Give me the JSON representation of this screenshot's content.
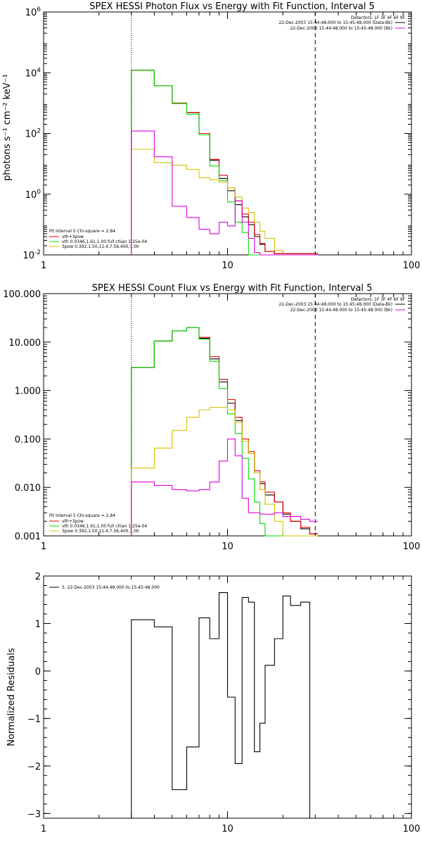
{
  "chart_data": [
    {
      "id": "photon",
      "type": "line",
      "title": "SPEX HESSI Photon Flux vs Energy with Fit Function, Interval 5",
      "xlabel": "",
      "ylabel": "photons s⁻¹ cm⁻² keV⁻¹",
      "xscale": "log",
      "yscale": "log",
      "xlim": [
        1,
        100
      ],
      "ylim": [
        0.01,
        1000000
      ],
      "xticks": [
        {
          "v": 1,
          "label": "1"
        },
        {
          "v": 10,
          "label": "10"
        },
        {
          "v": 100,
          "label": "100"
        }
      ],
      "yticks": [
        {
          "v": 0.01,
          "base": "10",
          "exp": "-2"
        },
        {
          "v": 1,
          "base": "10",
          "exp": "0"
        },
        {
          "v": 100,
          "base": "10",
          "exp": "2"
        },
        {
          "v": 10000,
          "base": "10",
          "exp": "4"
        },
        {
          "v": 1000000,
          "base": "10",
          "exp": "6"
        }
      ],
      "vlines": [
        {
          "x": 3,
          "style": "dotted"
        },
        {
          "x": 30,
          "style": "dashed"
        }
      ],
      "info_lines": [
        "Detectors: 1F 3F 4F 6F 9F",
        "22-Dec-2003 15:44:48.000 to 15:45:48.000 (Data-Bk)",
        "22-Dec-2003 15:44:48.000 to 15:45:48.000 (Bk)"
      ],
      "fit_legend": {
        "header": "Fit Interval 5   Chi-square = 2.84",
        "entries": [
          {
            "label": "vth+3pow",
            "color": "#e00000"
          },
          {
            "label": "vth 0.0346,1.61,1.00  full chian 1.25e-04",
            "color": "#00dd00"
          },
          {
            "label": "3pow 0.392,1.50,11.4,7.56,400,1.00",
            "color": "#d8c000"
          }
        ]
      },
      "edges": [
        3,
        4,
        5,
        6,
        7,
        8,
        9,
        10,
        11,
        12,
        13,
        14,
        15,
        16,
        18,
        20,
        22,
        25,
        28,
        31
      ],
      "series": [
        {
          "color": "#000000",
          "values": [
            12000,
            3700,
            1000,
            490,
            100,
            13,
            3.3,
            1.3,
            0.45,
            0.18,
            0.1,
            0.04,
            0.022,
            0.013,
            0.011,
            0.011,
            0.011,
            0.011,
            0.011
          ]
        },
        {
          "color": "#e00000",
          "values": [
            12000,
            3700,
            1000,
            490,
            100,
            14,
            4.2,
            1.6,
            0.6,
            0.22,
            0.12,
            0.047,
            0.024,
            0.013,
            0.011,
            0.011,
            0.011,
            0.011,
            0.011
          ]
        },
        {
          "color": "#00dd00",
          "values": [
            12000,
            3700,
            960,
            430,
            90,
            8.5,
            2.8,
            0.55,
            0.12,
            0.055,
            0.01,
            0.01,
            0.01,
            0.01,
            0.01,
            0.01,
            0.01,
            0.01,
            0.01
          ]
        },
        {
          "color": "#d8c000",
          "values": [
            30,
            11,
            9,
            6.5,
            3.5,
            3,
            2.5,
            1.6,
            0.8,
            0.35,
            0.25,
            0.12,
            0.06,
            0.035,
            0.014,
            0.01,
            0.01,
            0.01,
            0.01
          ]
        },
        {
          "color": "#e000e0",
          "values": [
            120,
            17,
            0.4,
            0.17,
            0.07,
            0.05,
            0.12,
            0.09,
            0.6,
            0.12,
            0.035,
            0.012,
            0.01,
            0.01,
            0.01,
            0.01,
            0.01,
            0.01,
            0.01
          ]
        }
      ]
    },
    {
      "id": "count",
      "type": "line",
      "title": "SPEX HESSI Count Flux vs Energy with Fit Function, Interval 5",
      "xlabel": "",
      "ylabel": "",
      "xscale": "log",
      "yscale": "log",
      "xlim": [
        1,
        100
      ],
      "ylim": [
        0.001,
        100
      ],
      "xticks": [
        {
          "v": 1,
          "label": "1"
        },
        {
          "v": 10,
          "label": "10"
        },
        {
          "v": 100,
          "label": "100"
        }
      ],
      "yticks": [
        {
          "v": 0.001,
          "label": "0.001"
        },
        {
          "v": 0.01,
          "label": "0.010"
        },
        {
          "v": 0.1,
          "label": "0.100"
        },
        {
          "v": 1,
          "label": "1.000"
        },
        {
          "v": 10,
          "label": "10.000"
        },
        {
          "v": 100,
          "label": "100.000"
        }
      ],
      "vlines": [
        {
          "x": 3,
          "style": "dotted"
        },
        {
          "x": 30,
          "style": "dashed"
        }
      ],
      "info_lines": [
        "Detectors: 1F 3F 4F 6F 9F",
        "22-Dec-2003 15:44:48.000 to 15:45:48.000 (Data-Bk)",
        "22-Dec-2003 15:44:48.000 to 15:45:48.000 (Bk)"
      ],
      "fit_legend": {
        "header": "Fit Interval 5   Chi-square = 2.84",
        "entries": [
          {
            "label": "vth+3pow",
            "color": "#e00000"
          },
          {
            "label": "vth 0.0346,1.61,1.00  full chian 1.25e-04",
            "color": "#00dd00"
          },
          {
            "label": "3pow 0.392,1.50,11.4,7.56,400,1.00",
            "color": "#d8c000"
          }
        ]
      },
      "edges": [
        3,
        4,
        5,
        6,
        7,
        8,
        9,
        10,
        11,
        12,
        13,
        14,
        15,
        16,
        18,
        20,
        22,
        25,
        28,
        31
      ],
      "series": [
        {
          "color": "#000000",
          "values": [
            3.0,
            10.5,
            17,
            20,
            12,
            4.5,
            1.5,
            0.55,
            0.24,
            0.09,
            0.05,
            0.02,
            0.012,
            0.007,
            0.005,
            0.0028,
            0.002,
            0.0014,
            0.0011
          ]
        },
        {
          "color": "#e00000",
          "values": [
            3.0,
            10.5,
            17,
            20,
            12.5,
            5.0,
            1.7,
            0.65,
            0.28,
            0.1,
            0.055,
            0.022,
            0.013,
            0.008,
            0.005,
            0.003,
            0.002,
            0.0015,
            0.0011
          ]
        },
        {
          "color": "#00dd00",
          "values": [
            3.0,
            10.5,
            17,
            20,
            11.5,
            4.0,
            1.1,
            0.33,
            0.13,
            0.04,
            0.015,
            0.005,
            0.0018,
            0.0008,
            0.0008,
            0.0008,
            0.0008,
            0.0008,
            0.0008
          ]
        },
        {
          "color": "#d8c000",
          "values": [
            0.025,
            0.065,
            0.15,
            0.28,
            0.4,
            0.45,
            0.45,
            0.4,
            0.22,
            0.09,
            0.05,
            0.02,
            0.009,
            0.0045,
            0.002,
            0.0009,
            0.0009,
            0.0009,
            0.0009
          ]
        },
        {
          "color": "#e000e0",
          "values": [
            0.013,
            0.011,
            0.009,
            0.0085,
            0.009,
            0.013,
            0.035,
            0.1,
            0.045,
            0.006,
            0.003,
            0.003,
            0.0028,
            0.0028,
            0.003,
            0.0025,
            0.0025,
            0.0022,
            0.002
          ]
        }
      ]
    },
    {
      "id": "residuals",
      "type": "line",
      "title": "",
      "xlabel": "",
      "ylabel": "Normalized Residuals",
      "xscale": "log",
      "yscale": "linear",
      "xlim": [
        1,
        100
      ],
      "ylim": [
        -3.1,
        2.0
      ],
      "xticks": [
        {
          "v": 1,
          "label": "1"
        },
        {
          "v": 10,
          "label": "10"
        },
        {
          "v": 100,
          "label": "100"
        }
      ],
      "yticks": [
        {
          "v": -3,
          "label": "−3"
        },
        {
          "v": -2,
          "label": "−2"
        },
        {
          "v": -1,
          "label": "−1"
        },
        {
          "v": 0,
          "label": "0"
        },
        {
          "v": 1,
          "label": "1"
        },
        {
          "v": 2,
          "label": "2"
        }
      ],
      "legend": {
        "label": "5, 22-Dec-2003 15:44:48.000 to 15:45:48.000",
        "color": "#000000"
      },
      "edges": [
        3,
        4,
        5,
        6,
        7,
        8,
        9,
        10,
        11,
        12,
        13,
        14,
        15,
        16,
        18,
        20,
        22,
        25,
        28,
        31
      ],
      "series": [
        {
          "color": "#000000",
          "values": [
            1.08,
            0.93,
            -2.5,
            -1.6,
            1.12,
            0.68,
            1.65,
            -0.55,
            -1.95,
            1.55,
            1.45,
            -1.7,
            -1.1,
            0.12,
            0.68,
            1.58,
            1.38,
            1.45,
            -3.1
          ]
        }
      ]
    }
  ]
}
